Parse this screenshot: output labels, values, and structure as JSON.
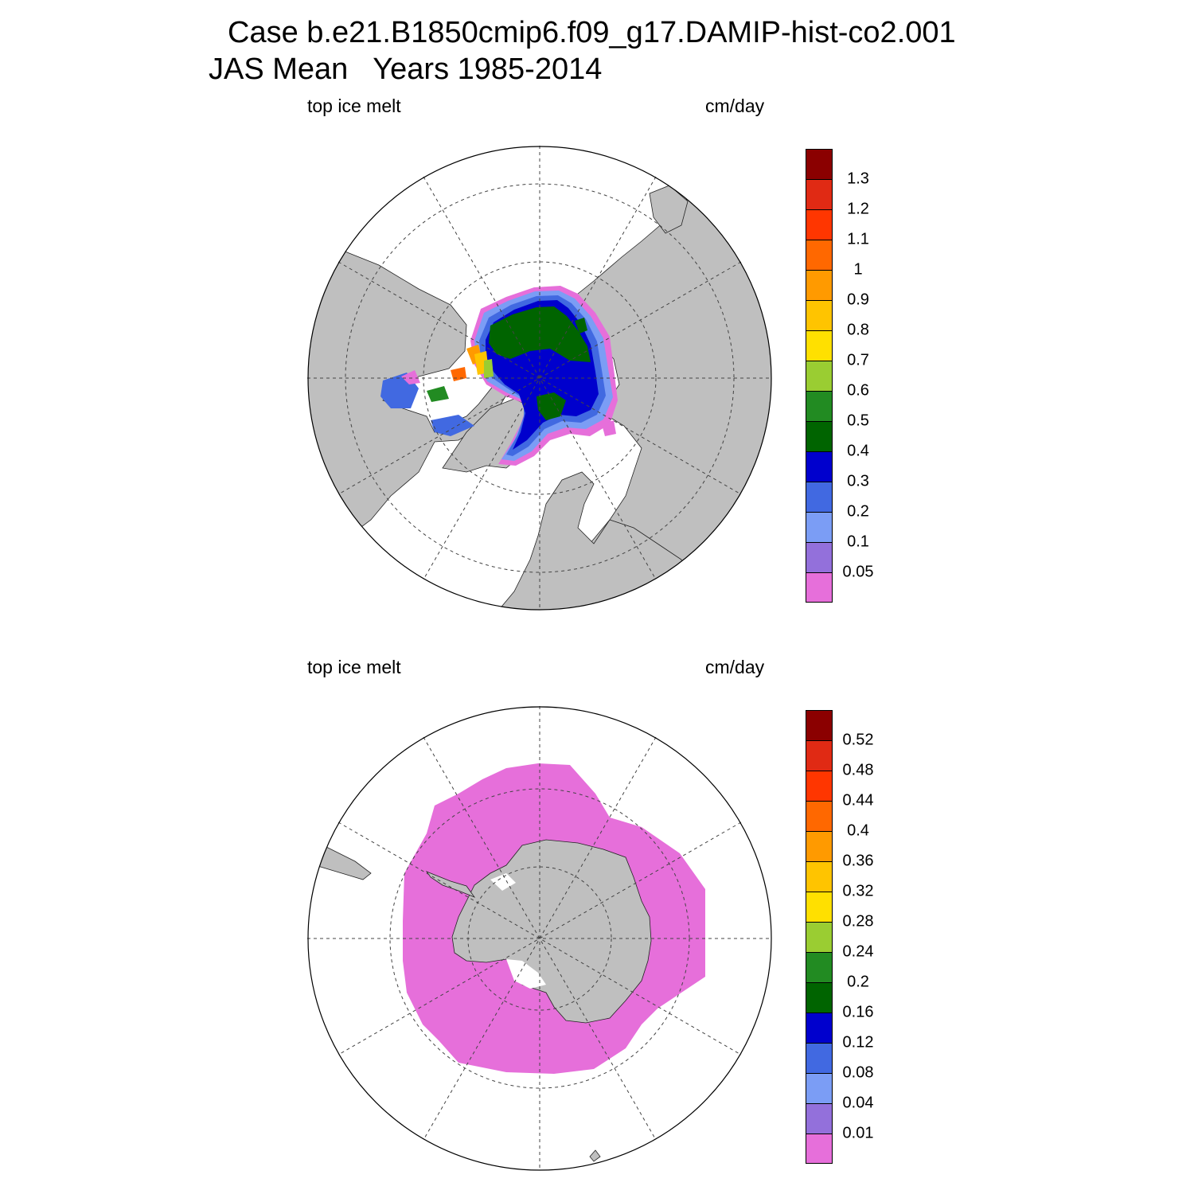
{
  "figure": {
    "title": "Case b.e21.B1850cmip6.f09_g17.DAMIP-hist-co2.001",
    "subtitle": "JAS Mean   Years 1985-2014"
  },
  "colors": {
    "land": "#bfbfbf",
    "ocean": "#ffffff",
    "palette": [
      "#e66fda",
      "#9370db",
      "#7b9df5",
      "#4169e1",
      "#0000cd",
      "#006400",
      "#228b22",
      "#9acd32",
      "#ffe000",
      "#ffc400",
      "#ff9a00",
      "#ff6800",
      "#ff3600",
      "#e02a14",
      "#8b0000"
    ]
  },
  "panels": [
    {
      "hemisphere": "north",
      "left_label": "top ice melt",
      "right_label": "cm/day",
      "colorbar_levels": [
        "1.3",
        "1.2",
        "1.1",
        "1",
        "0.9",
        "0.8",
        "0.7",
        "0.6",
        "0.5",
        "0.4",
        "0.3",
        "0.2",
        "0.1",
        "0.05"
      ]
    },
    {
      "hemisphere": "south",
      "left_label": "top ice melt",
      "right_label": "cm/day",
      "colorbar_levels": [
        "0.52",
        "0.48",
        "0.44",
        "0.4",
        "0.36",
        "0.32",
        "0.28",
        "0.24",
        "0.2",
        "0.16",
        "0.12",
        "0.08",
        "0.04",
        "0.01"
      ]
    }
  ]
}
